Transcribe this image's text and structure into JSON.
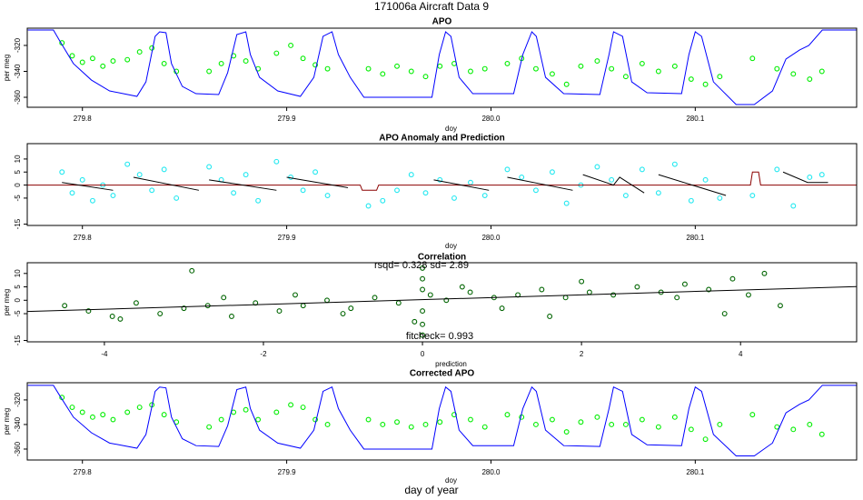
{
  "title": "171006a   Aircraft Data 9",
  "xlabel": "day of year",
  "chart_data": [
    {
      "type": "scatter",
      "title": "APO",
      "xlabel": "doy",
      "ylabel": "per meg",
      "xlim": [
        279.773,
        280.179
      ],
      "ylim": [
        -367.7,
        -306.7
      ],
      "xticks": [
        279.8,
        279.9,
        {
          "value": 280,
          "label": "280.0"
        },
        280.1
      ],
      "yticks": [
        -360,
        -340,
        -320
      ],
      "series": [
        {
          "kind": "points",
          "color": "#00ee00",
          "x": [
            279.79,
            279.795,
            279.8,
            279.805,
            279.81,
            279.815,
            279.822,
            279.828,
            279.834,
            279.84,
            279.846,
            279.862,
            279.868,
            279.874,
            279.88,
            279.886,
            279.895,
            279.902,
            279.908,
            279.914,
            279.92,
            279.94,
            279.947,
            279.954,
            279.961,
            279.968,
            279.975,
            279.982,
            279.99,
            279.997,
            280.008,
            280.015,
            280.022,
            280.03,
            280.037,
            280.044,
            280.052,
            280.059,
            280.066,
            280.074,
            280.082,
            280.09,
            280.098,
            280.105,
            280.112,
            280.128,
            280.14,
            280.148,
            280.156,
            280.162
          ],
          "values": [
            -318,
            -328,
            -333,
            -330,
            -336,
            -332,
            -331,
            -325,
            -322,
            -334,
            -340,
            -340,
            -334,
            -328,
            -332,
            -338,
            -326,
            -320,
            -330,
            -335,
            -338,
            -338,
            -342,
            -336,
            -340,
            -344,
            -336,
            -334,
            -340,
            -338,
            -334,
            -330,
            -338,
            -342,
            -350,
            -336,
            -332,
            -338,
            -344,
            -334,
            -340,
            -336,
            -346,
            -350,
            -344,
            -330,
            -338,
            -342,
            -346,
            -340
          ]
        },
        {
          "kind": "line",
          "color": "#0000ff",
          "x": [
            279.7733,
            279.7858,
            279.7889,
            279.7956,
            279.8044,
            279.8133,
            279.8267,
            279.8311,
            279.8356,
            279.8378,
            279.8409,
            279.8436,
            279.8489,
            279.8556,
            279.8667,
            279.8711,
            279.8756,
            279.88,
            279.8822,
            279.8867,
            279.8956,
            279.9067,
            279.9133,
            279.9178,
            279.9222,
            279.9253,
            279.9311,
            279.9378,
            279.9711,
            279.9747,
            279.9778,
            279.9804,
            279.9844,
            279.9911,
            280.0111,
            280.0156,
            280.02,
            280.0222,
            280.0267,
            280.0356,
            280.0533,
            280.0578,
            280.06,
            280.0644,
            280.0689,
            280.0764,
            280.0933,
            280.0969,
            280.1,
            280.1031,
            280.1089,
            280.12,
            280.1289,
            280.1378,
            280.1444,
            280.1511,
            280.1556,
            280.1622,
            280.1791
          ],
          "values": [
            -308.1,
            -308.1,
            -316.5,
            -334,
            -346.7,
            -355.1,
            -359.3,
            -348.1,
            -313,
            -309.5,
            -310.2,
            -334,
            -351.6,
            -357.2,
            -357.9,
            -341,
            -311.6,
            -309.5,
            -327,
            -344.6,
            -355.1,
            -359.3,
            -344.6,
            -313,
            -309.5,
            -327,
            -344.6,
            -360,
            -360,
            -327,
            -309.5,
            -313,
            -344.6,
            -357.2,
            -357.2,
            -327,
            -309.5,
            -313,
            -344.6,
            -357.2,
            -357.9,
            -327,
            -309.5,
            -313,
            -348.1,
            -356.5,
            -357.2,
            -327,
            -309.5,
            -313,
            -348.1,
            -365.6,
            -365.6,
            -355.1,
            -330.5,
            -323.5,
            -320,
            -308.1,
            -308.1
          ]
        }
      ]
    },
    {
      "type": "scatter",
      "title": "APO Anomaly and Prediction",
      "xlabel": "doy",
      "xlim": [
        279.773,
        280.179
      ],
      "ylim": [
        -15.5,
        15.9
      ],
      "xticks": [
        279.8,
        279.9,
        {
          "value": 280,
          "label": "280.0"
        },
        280.1
      ],
      "yticks": [
        -15,
        -5,
        0,
        5,
        10
      ],
      "series": [
        {
          "kind": "points",
          "color": "#22e8f0",
          "x": [
            279.79,
            279.795,
            279.8,
            279.805,
            279.81,
            279.815,
            279.822,
            279.828,
            279.834,
            279.84,
            279.846,
            279.862,
            279.868,
            279.874,
            279.88,
            279.886,
            279.895,
            279.902,
            279.908,
            279.914,
            279.92,
            279.94,
            279.947,
            279.954,
            279.961,
            279.968,
            279.975,
            279.982,
            279.99,
            279.997,
            280.008,
            280.015,
            280.022,
            280.03,
            280.037,
            280.044,
            280.052,
            280.059,
            280.066,
            280.074,
            280.082,
            280.09,
            280.098,
            280.105,
            280.112,
            280.128,
            280.14,
            280.148,
            280.156,
            280.162
          ],
          "values": [
            5,
            -3,
            2,
            -6,
            0,
            -4,
            8,
            4,
            -2,
            6,
            -5,
            7,
            2,
            -3,
            4,
            -6,
            9,
            3,
            -2,
            5,
            -4,
            -8,
            -6,
            -2,
            4,
            -3,
            2,
            -5,
            1,
            -4,
            6,
            3,
            -2,
            5,
            -7,
            0,
            7,
            2,
            -4,
            6,
            -3,
            8,
            -6,
            2,
            -5,
            -4,
            6,
            -8,
            3,
            4
          ]
        },
        {
          "kind": "line",
          "color": "#8b0000",
          "x": [
            279.773,
            279.936,
            279.937,
            279.944,
            279.945,
            280.127,
            280.128,
            280.131,
            280.132,
            280.179
          ],
          "values": [
            0,
            0,
            -2,
            -2,
            0,
            0,
            5,
            5,
            0,
            0
          ]
        },
        {
          "kind": "line",
          "color": "#000000",
          "x": [
            279.79,
            279.815,
            null,
            279.825,
            279.857,
            null,
            279.862,
            279.895,
            null,
            279.9,
            279.93,
            null,
            279.972,
            279.999,
            null,
            280.008,
            280.04,
            null,
            280.045,
            280.06,
            280.063,
            280.075,
            null,
            280.082,
            280.115,
            null,
            280.143,
            280.155,
            280.165
          ],
          "values": [
            1,
            -2,
            null,
            3,
            -2,
            null,
            2,
            -2,
            null,
            3,
            -1,
            null,
            2,
            -2,
            null,
            3,
            -2,
            null,
            4,
            0,
            3,
            -3,
            null,
            4,
            -4,
            null,
            5,
            1,
            1
          ]
        }
      ]
    },
    {
      "type": "scatter",
      "title": "Correlation",
      "xlabel": "prediction",
      "ylabel": "per meg",
      "annotations": [
        "rsqd= 0.328 sd= 2.89",
        "fitcheck= 0.993"
      ],
      "xlim": [
        -4.97,
        5.46
      ],
      "ylim": [
        -15.5,
        14
      ],
      "xticks": [
        -4,
        -2,
        0,
        2,
        4
      ],
      "yticks": [
        -15,
        -5,
        0,
        5,
        10
      ],
      "series": [
        {
          "kind": "points",
          "color": "#006400",
          "x": [
            -4.5,
            -4.2,
            -3.9,
            -3.6,
            -3.3,
            -3.0,
            -2.9,
            -2.7,
            -2.4,
            -2.1,
            -1.8,
            -1.5,
            -1.2,
            -0.9,
            -0.6,
            -0.3,
            -0.1,
            0,
            0,
            0,
            0,
            0,
            0,
            0.1,
            0.3,
            0.6,
            0.9,
            1.2,
            1.5,
            1.8,
            2.1,
            2.4,
            2.7,
            3.0,
            3.3,
            3.6,
            3.9,
            4.1,
            4.3,
            4.5,
            -3.8,
            -2.5,
            -1.0,
            0.5,
            1.0,
            2.0,
            3.2,
            3.8,
            -1.6,
            1.6
          ],
          "values": [
            -2,
            -4,
            -6,
            -1,
            -5,
            -3,
            11,
            -2,
            -6,
            -1,
            -4,
            -2,
            0,
            -3,
            1,
            -1,
            -8,
            12,
            8,
            4,
            -4,
            -9,
            -13,
            2,
            0,
            3,
            1,
            2,
            4,
            1,
            3,
            2,
            5,
            3,
            6,
            4,
            8,
            2,
            10,
            -2,
            -7,
            1,
            -5,
            5,
            -3,
            7,
            1,
            -5,
            2,
            -6
          ]
        },
        {
          "kind": "line",
          "color": "#000000",
          "x": [
            -4.97,
            5.46
          ],
          "values": [
            -4.2,
            5.1
          ]
        }
      ]
    },
    {
      "type": "scatter",
      "title": "Corrected APO",
      "xlabel": "doy",
      "ylabel": "per meg",
      "xlim": [
        279.773,
        280.179
      ],
      "ylim": [
        -368.9,
        -306
      ],
      "xticks": [
        279.8,
        279.9,
        {
          "value": 280,
          "label": "280.0"
        },
        280.1
      ],
      "yticks": [
        -360,
        -340,
        -320
      ],
      "series": [
        {
          "kind": "points",
          "color": "#00ee00",
          "x": [
            279.79,
            279.795,
            279.8,
            279.805,
            279.81,
            279.815,
            279.822,
            279.828,
            279.834,
            279.84,
            279.846,
            279.862,
            279.868,
            279.874,
            279.88,
            279.886,
            279.895,
            279.902,
            279.908,
            279.914,
            279.92,
            279.94,
            279.947,
            279.954,
            279.961,
            279.968,
            279.975,
            279.982,
            279.99,
            279.997,
            280.008,
            280.015,
            280.022,
            280.03,
            280.037,
            280.044,
            280.052,
            280.059,
            280.066,
            280.074,
            280.082,
            280.09,
            280.098,
            280.105,
            280.112,
            280.128,
            280.14,
            280.148,
            280.156,
            280.162
          ],
          "values": [
            -318,
            -326,
            -330,
            -334,
            -332,
            -336,
            -330,
            -326,
            -324,
            -332,
            -338,
            -342,
            -336,
            -330,
            -328,
            -336,
            -330,
            -324,
            -326,
            -336,
            -340,
            -336,
            -340,
            -338,
            -342,
            -340,
            -338,
            -332,
            -336,
            -342,
            -332,
            -334,
            -340,
            -336,
            -346,
            -338,
            -334,
            -340,
            -340,
            -336,
            -342,
            -334,
            -344,
            -352,
            -340,
            -332,
            -342,
            -344,
            -340,
            -348
          ]
        },
        {
          "kind": "line",
          "color": "#0000ff",
          "x": [
            279.7733,
            279.7858,
            279.7889,
            279.7956,
            279.8044,
            279.8133,
            279.8267,
            279.8311,
            279.8356,
            279.8378,
            279.8409,
            279.8436,
            279.8489,
            279.8556,
            279.8667,
            279.8711,
            279.8756,
            279.88,
            279.8822,
            279.8867,
            279.8956,
            279.9067,
            279.9133,
            279.9178,
            279.9222,
            279.9253,
            279.9311,
            279.9378,
            279.9711,
            279.9747,
            279.9778,
            279.9804,
            279.9844,
            279.9911,
            280.0111,
            280.0156,
            280.02,
            280.0222,
            280.0267,
            280.0356,
            280.0533,
            280.0578,
            280.06,
            280.0644,
            280.0689,
            280.0764,
            280.0933,
            280.0969,
            280.1,
            280.1031,
            280.1089,
            280.12,
            280.1289,
            280.1378,
            280.1444,
            280.1511,
            280.1556,
            280.1622,
            280.1791
          ],
          "values": [
            -308.1,
            -308.1,
            -316.5,
            -334,
            -346.7,
            -355.1,
            -359.3,
            -348.1,
            -313,
            -309.5,
            -310.2,
            -334,
            -351.6,
            -357.2,
            -357.9,
            -341,
            -311.6,
            -309.5,
            -327,
            -344.6,
            -355.1,
            -359.3,
            -344.6,
            -313,
            -309.5,
            -327,
            -344.6,
            -360,
            -360,
            -327,
            -309.5,
            -313,
            -344.6,
            -357.2,
            -357.2,
            -327,
            -309.5,
            -313,
            -344.6,
            -357.2,
            -357.9,
            -327,
            -309.5,
            -313,
            -348.1,
            -356.5,
            -357.2,
            -327,
            -309.5,
            -313,
            -348.1,
            -365.6,
            -365.6,
            -355.1,
            -330.5,
            -323.5,
            -320,
            -308.1,
            -308.1
          ]
        }
      ]
    }
  ]
}
